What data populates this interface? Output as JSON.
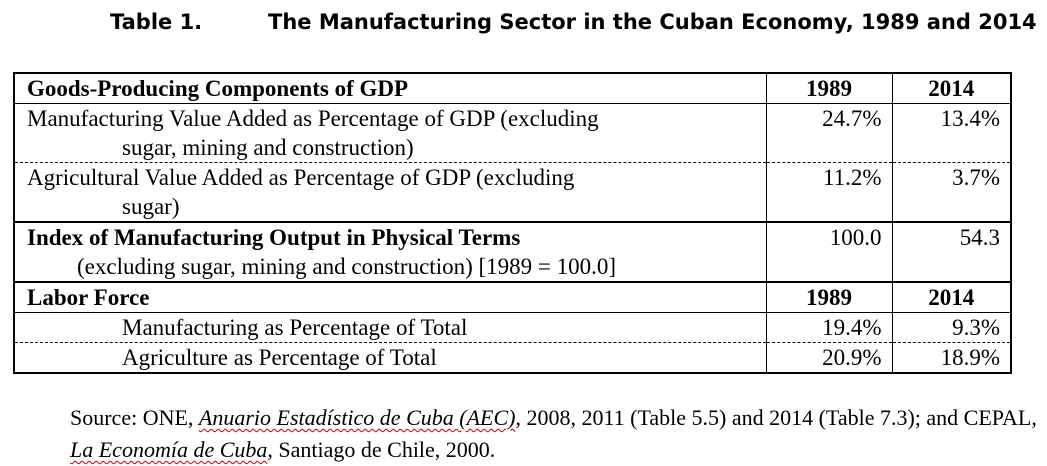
{
  "caption": {
    "number": "Table 1.",
    "title": "The Manufacturing Sector in the Cuban Economy, 1989 and 2014"
  },
  "table": {
    "section1": {
      "header": "Goods-Producing Components of GDP",
      "col1": "1989",
      "col2": "2014"
    },
    "rows": [
      {
        "label_line1": "Manufacturing Value Added as Percentage of  GDP (excluding",
        "label_line2": "sugar, mining and construction)",
        "v1989": "24.7%",
        "v2014": "13.4%"
      },
      {
        "label_line1": "Agricultural  Value Added as Percentage of  GDP  (excluding",
        "label_line2": "sugar)",
        "v1989": "11.2%",
        "v2014": "3.7%"
      }
    ],
    "index": {
      "label_line1": "Index of Manufacturing Output in Physical Terms",
      "label_line2": "(excluding sugar, mining and construction) [1989 = 100.0]",
      "v1989": "100.0",
      "v2014": "54.3"
    },
    "section2": {
      "header": "Labor Force",
      "col1": "1989",
      "col2": "2014"
    },
    "labor_rows": [
      {
        "label": "Manufacturing as Percentage of Total",
        "v1989": "19.4%",
        "v2014": "9.3%"
      },
      {
        "label": "Agriculture as Percentage of Total",
        "v1989": "20.9%",
        "v2014": "18.9%"
      }
    ]
  },
  "source": {
    "prefix": "Source: ONE, ",
    "aec_title": "Anuario Estadístico de Cuba (AEC)",
    "middle": ", 2008, 2011 (Table 5.5) and 2014 (Table 7.3); and CEPAL, ",
    "cepal_title": "La Economía de Cuba",
    "suffix": ", Santiago de Chile, 2000."
  }
}
